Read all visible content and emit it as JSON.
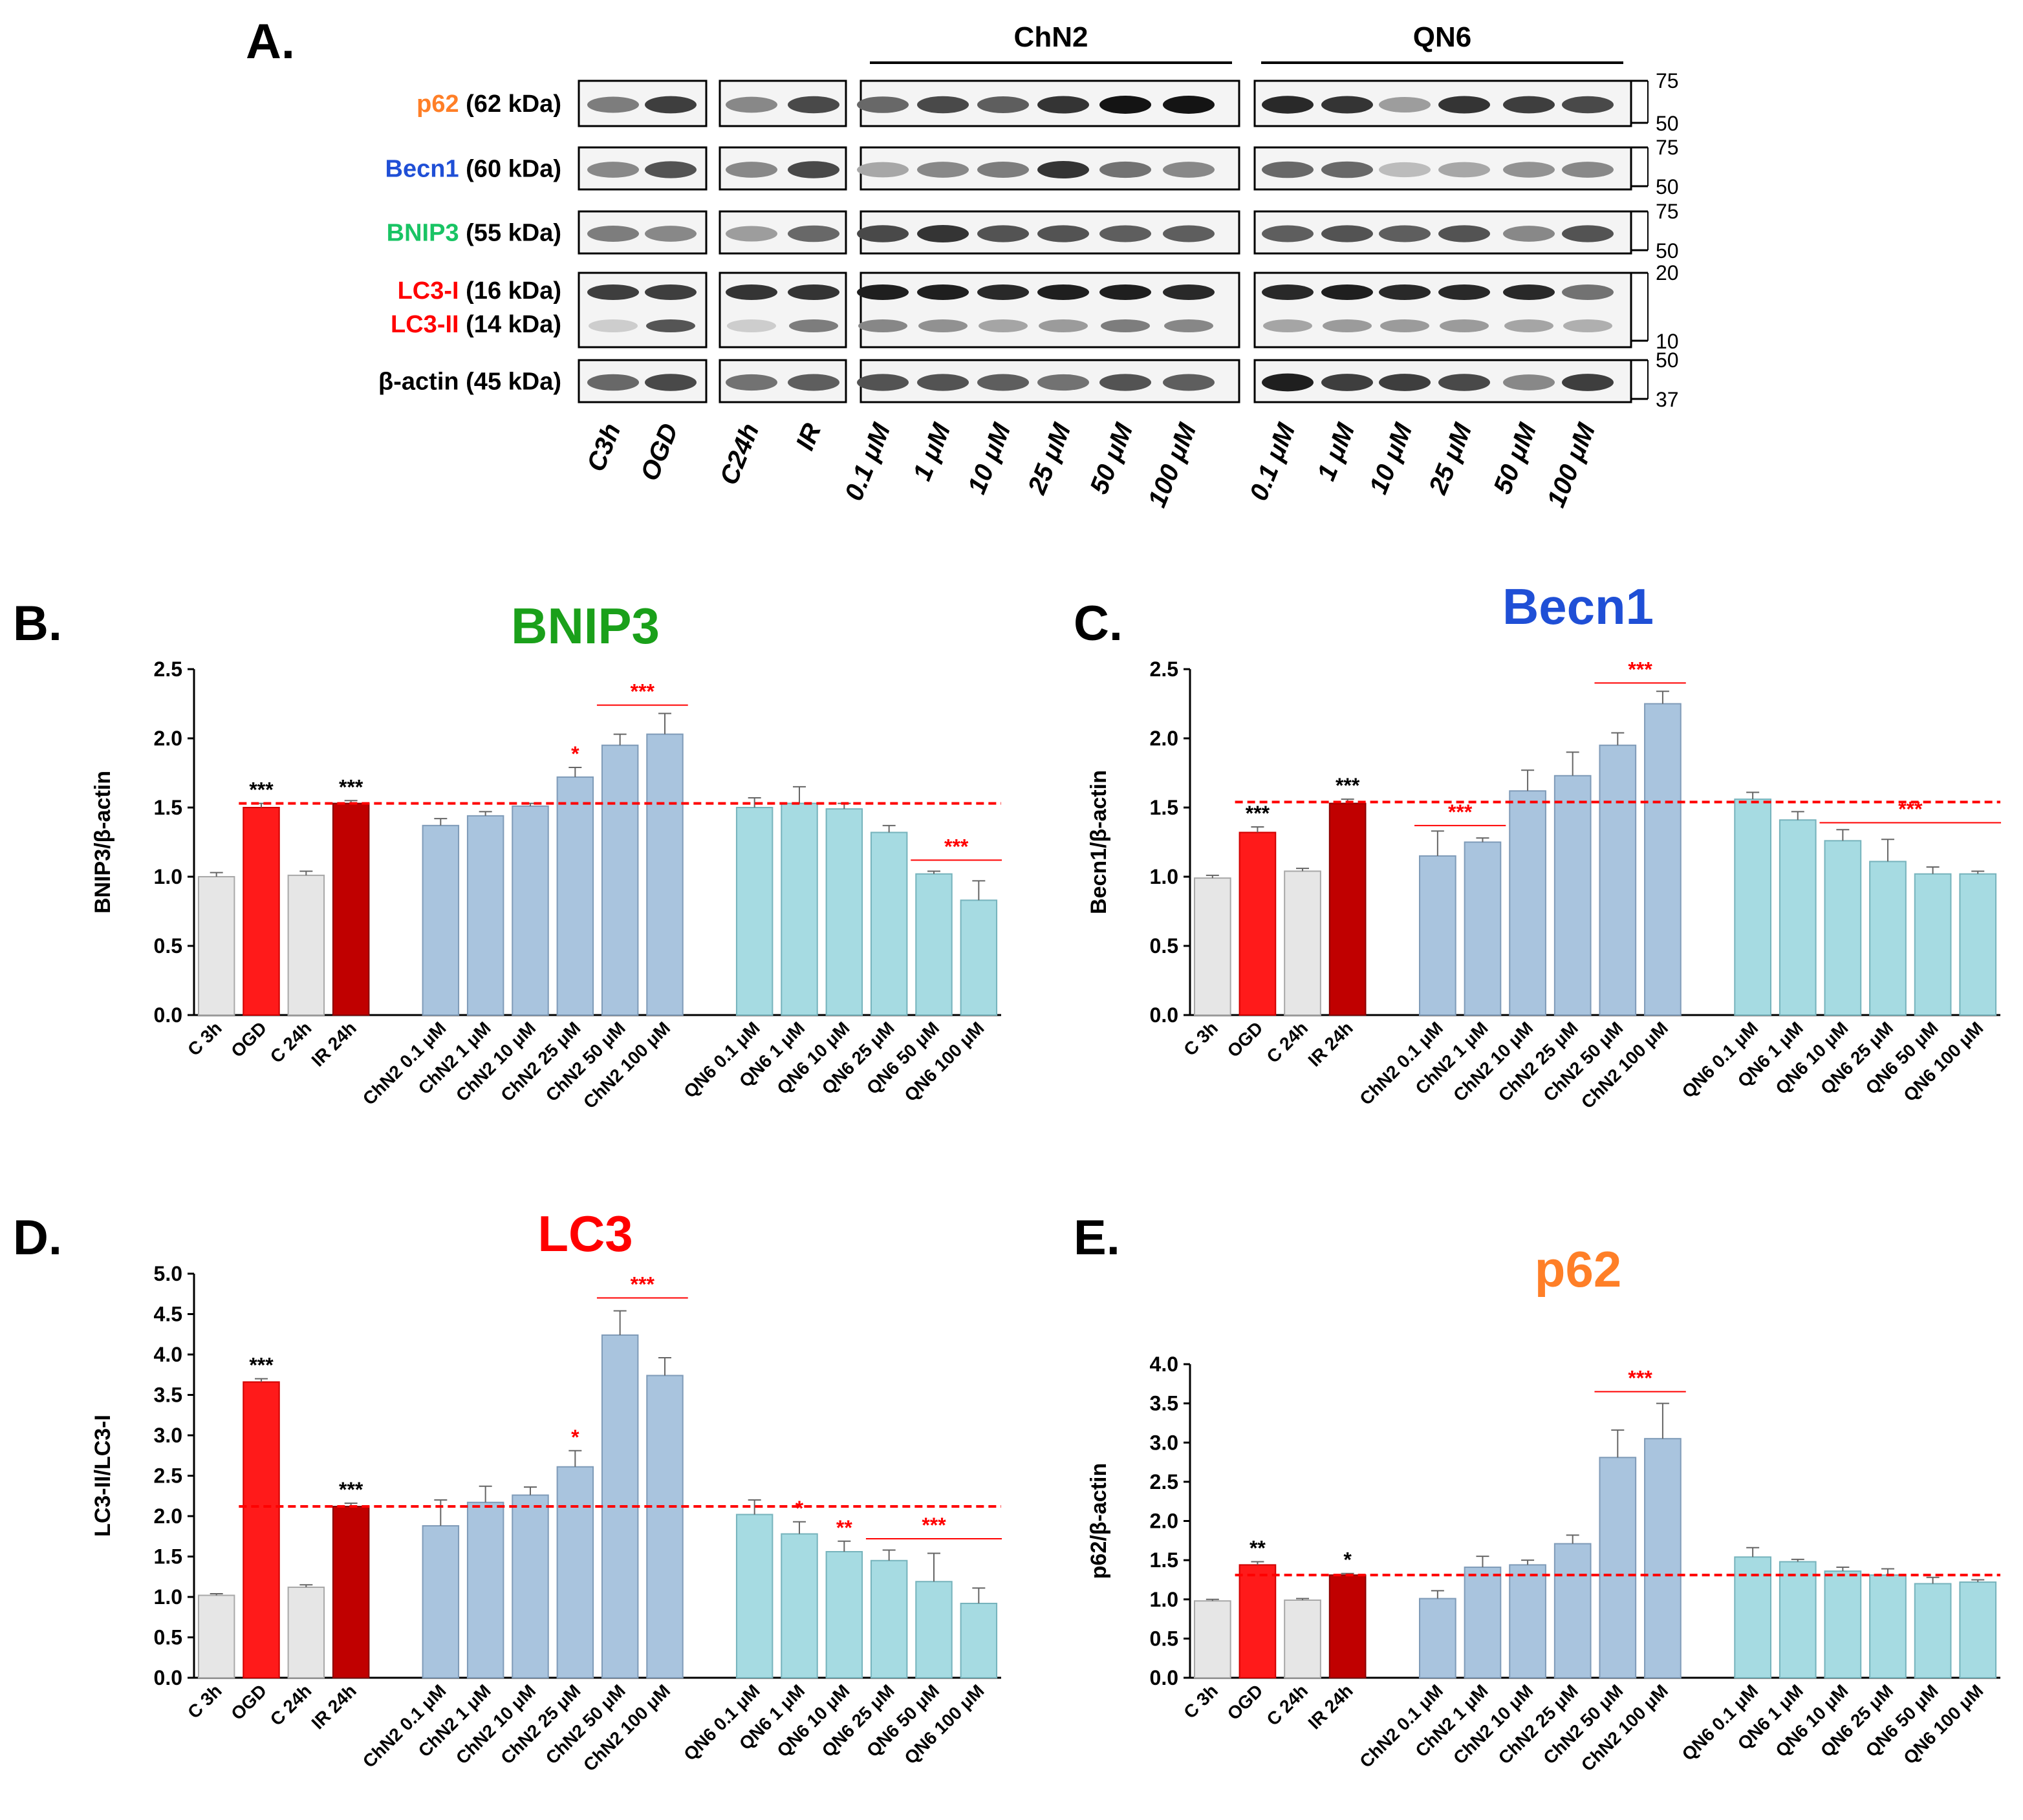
{
  "colors": {
    "control": "#e6e6e6",
    "ogd": "#ff1a1a",
    "ir": "#c00000",
    "chn2": "#a9c4de",
    "qn6": "#a6dbe2",
    "sig_black": "#000000",
    "sig_red": "#ff0000",
    "ref_line": "#ff0000",
    "p62": "#ff7f27",
    "becn1": "#1f4fd6",
    "bnip3": "#19c464",
    "lc3": "#ff0000",
    "actin": "#000000",
    "bnip3_title": "#1aa01a",
    "becn1_title": "#1f4fd6",
    "lc3_title": "#ff0000",
    "p62_title": "#ff7f27"
  },
  "panel_a": {
    "letter": "A.",
    "groups": [
      "ChN2",
      "QN6"
    ],
    "rows": [
      {
        "name": "p62",
        "size": " (62 kDa)",
        "color_key": "p62",
        "mw": [
          "75",
          "50"
        ]
      },
      {
        "name": "Becn1",
        "size": " (60 kDa)",
        "color_key": "becn1",
        "mw": [
          "75",
          "50"
        ]
      },
      {
        "name": "BNIP3",
        "size": " (55 kDa)",
        "color_key": "bnip3",
        "mw": [
          "75",
          "50"
        ]
      },
      {
        "name": "LC3-I",
        "size": " (16 kDa)",
        "name2": "LC3-II",
        "size2": " (14 kDa)",
        "color_key": "lc3",
        "mw": [
          "20",
          "10"
        ]
      },
      {
        "name": "β-actin",
        "size": " (45 kDa)",
        "color_key": "actin",
        "mw": [
          "50",
          "37"
        ]
      }
    ],
    "lanes": [
      "C3h",
      "OGD",
      "C24h",
      "IR",
      "0.1 μM",
      "1 μM",
      "10 μM",
      "25 μM",
      "50 μM",
      "100 μM",
      "0.1 μM",
      "1 μM",
      "10 μM",
      "25 μM",
      "50 μM",
      "100 μM"
    ]
  },
  "chart_data": [
    {
      "type": "bar",
      "letter": "B.",
      "title": "BNIP3",
      "title_color_key": "bnip3_title",
      "ylabel": "BNIP3/β-actin",
      "xlabel": "",
      "ylim": [
        0,
        2.5
      ],
      "yticks": [
        "0.0",
        "0.5",
        "1.0",
        "1.5",
        "2.0",
        "2.5"
      ],
      "categories": [
        "C 3h",
        "OGD",
        "C 24h",
        "IR 24h",
        "ChN2 0.1 μM",
        "ChN2 1 μM",
        "ChN2 10 μM",
        "ChN2 25 μM",
        "ChN2 50 μM",
        "ChN2 100 μM",
        "QN6 0.1 μM",
        "QN6 1 μM",
        "QN6 10 μM",
        "QN6 25 μM",
        "QN6 50 μM",
        "QN6 100 μM"
      ],
      "values": [
        1.0,
        1.5,
        1.01,
        1.53,
        1.37,
        1.44,
        1.51,
        1.72,
        1.95,
        2.03,
        1.5,
        1.53,
        1.49,
        1.32,
        1.02,
        0.83
      ],
      "errors": [
        0.03,
        0.03,
        0.03,
        0.02,
        0.05,
        0.03,
        0.02,
        0.07,
        0.08,
        0.15,
        0.07,
        0.12,
        0.04,
        0.05,
        0.02,
        0.14
      ],
      "reference_line": 1.53,
      "significance": [
        {
          "bar": 1,
          "text": "***",
          "color": "black"
        },
        {
          "bar": 3,
          "text": "***",
          "color": "black"
        },
        {
          "bar": 7,
          "text": "*",
          "color": "red"
        }
      ],
      "brackets": [
        {
          "from": 8,
          "to": 9,
          "y": 2.24,
          "text": "***"
        },
        {
          "from": 14,
          "to": 15,
          "y": 1.12,
          "text": "***"
        }
      ]
    },
    {
      "type": "bar",
      "letter": "C.",
      "title": "Becn1",
      "title_color_key": "becn1_title",
      "ylabel": "Becn1/β-actin",
      "xlabel": "",
      "ylim": [
        0,
        2.5
      ],
      "yticks": [
        "0.0",
        "0.5",
        "1.0",
        "1.5",
        "2.0",
        "2.5"
      ],
      "categories": [
        "C 3h",
        "OGD",
        "C 24h",
        "IR 24h",
        "ChN2 0.1 μM",
        "ChN2 1 μM",
        "ChN2 10 μM",
        "ChN2 25 μM",
        "ChN2 50 μM",
        "ChN2 100 μM",
        "QN6 0.1 μM",
        "QN6 1 μM",
        "QN6 10 μM",
        "QN6 25 μM",
        "QN6 50 μM",
        "QN6 100 μM"
      ],
      "values": [
        0.99,
        1.32,
        1.04,
        1.53,
        1.15,
        1.25,
        1.62,
        1.73,
        1.95,
        2.25,
        1.56,
        1.41,
        1.26,
        1.11,
        1.02,
        1.02
      ],
      "errors": [
        0.02,
        0.04,
        0.02,
        0.03,
        0.18,
        0.03,
        0.15,
        0.17,
        0.09,
        0.09,
        0.05,
        0.06,
        0.08,
        0.16,
        0.05,
        0.02
      ],
      "reference_line": 1.54,
      "significance": [
        {
          "bar": 1,
          "text": "***",
          "color": "black"
        },
        {
          "bar": 3,
          "text": "***",
          "color": "black"
        }
      ],
      "brackets": [
        {
          "from": 8,
          "to": 9,
          "y": 2.4,
          "text": "***"
        },
        {
          "from": 4,
          "to": 5,
          "y": 1.37,
          "text": "***"
        },
        {
          "from": 12,
          "to": 15,
          "y": 1.39,
          "text": "***"
        }
      ]
    },
    {
      "type": "bar",
      "letter": "D.",
      "title": "LC3",
      "title_color_key": "lc3_title",
      "ylabel": "LC3-II/LC3-I",
      "xlabel": "",
      "ylim": [
        0,
        5.0
      ],
      "yticks": [
        "0.0",
        "0.5",
        "1.0",
        "1.5",
        "2.0",
        "2.5",
        "3.0",
        "3.5",
        "4.0",
        "4.5",
        "5.0"
      ],
      "categories": [
        "C 3h",
        "OGD",
        "C 24h",
        "IR 24h",
        "ChN2 0.1 μM",
        "ChN2 1 μM",
        "ChN2 10 μM",
        "ChN2 25 μM",
        "ChN2 50 μM",
        "ChN2 100 μM",
        "QN6 0.1 μM",
        "QN6 1 μM",
        "QN6 10 μM",
        "QN6 25 μM",
        "QN6 50 μM",
        "QN6 100 μM"
      ],
      "values": [
        1.02,
        3.66,
        1.12,
        2.12,
        1.88,
        2.17,
        2.26,
        2.61,
        4.24,
        3.74,
        2.02,
        1.78,
        1.56,
        1.45,
        1.19,
        0.92
      ],
      "errors": [
        0.02,
        0.04,
        0.03,
        0.04,
        0.32,
        0.2,
        0.1,
        0.2,
        0.3,
        0.22,
        0.18,
        0.15,
        0.13,
        0.13,
        0.35,
        0.19
      ],
      "reference_line": 2.12,
      "significance": [
        {
          "bar": 1,
          "text": "***",
          "color": "black"
        },
        {
          "bar": 3,
          "text": "***",
          "color": "black"
        },
        {
          "bar": 7,
          "text": "*",
          "color": "red"
        },
        {
          "bar": 11,
          "text": "*",
          "color": "red"
        },
        {
          "bar": 12,
          "text": "**",
          "color": "red"
        }
      ],
      "brackets": [
        {
          "from": 8,
          "to": 9,
          "y": 4.7,
          "text": "***"
        },
        {
          "from": 13,
          "to": 15,
          "y": 1.72,
          "text": "***"
        }
      ]
    },
    {
      "type": "bar",
      "letter": "E.",
      "title": "p62",
      "title_color_key": "p62_title",
      "ylabel": "p62/β-actin",
      "xlabel": "",
      "ylim": [
        0,
        4.0
      ],
      "yticks": [
        "0.0",
        "0.5",
        "1.0",
        "1.5",
        "2.0",
        "2.5",
        "3.0",
        "3.5",
        "4.0"
      ],
      "categories": [
        "C 3h",
        "OGD",
        "C 24h",
        "IR 24h",
        "ChN2 0.1 μM",
        "ChN2 1 μM",
        "ChN2 10 μM",
        "ChN2 25 μM",
        "ChN2 50 μM",
        "ChN2 100 μM",
        "QN6 0.1 μM",
        "QN6 1 μM",
        "QN6 10 μM",
        "QN6 25 μM",
        "QN6 50 μM",
        "QN6 100 μM"
      ],
      "values": [
        0.98,
        1.44,
        0.99,
        1.31,
        1.01,
        1.41,
        1.44,
        1.71,
        2.81,
        3.05,
        1.54,
        1.48,
        1.36,
        1.31,
        1.2,
        1.22
      ],
      "errors": [
        0.02,
        0.04,
        0.02,
        0.02,
        0.1,
        0.14,
        0.06,
        0.11,
        0.35,
        0.45,
        0.12,
        0.03,
        0.05,
        0.08,
        0.08,
        0.03
      ],
      "reference_line": 1.31,
      "significance": [
        {
          "bar": 1,
          "text": "**",
          "color": "black"
        },
        {
          "bar": 3,
          "text": "*",
          "color": "black"
        }
      ],
      "brackets": [
        {
          "from": 8,
          "to": 9,
          "y": 3.65,
          "text": "***"
        }
      ]
    }
  ]
}
